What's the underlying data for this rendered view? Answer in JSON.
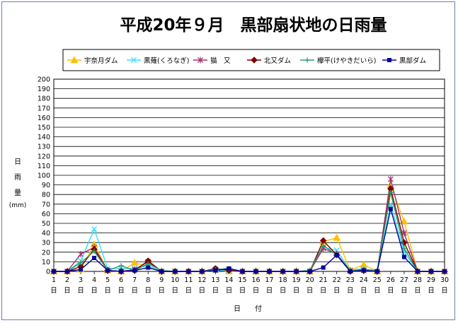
{
  "chart_data": {
    "type": "line",
    "title": "平成20年９月　黒部扇状地の日雨量",
    "ylabel": [
      "日",
      "雨",
      "量",
      "(mm)"
    ],
    "xlabel": "日　　付",
    "day_suffix": "日",
    "ylim": [
      0,
      200
    ],
    "ytick_step": 10,
    "grid": true,
    "legend_position": "top",
    "x": [
      1,
      2,
      3,
      4,
      5,
      6,
      7,
      8,
      9,
      10,
      11,
      12,
      13,
      14,
      15,
      16,
      17,
      18,
      19,
      20,
      21,
      22,
      23,
      24,
      25,
      26,
      27,
      28,
      29,
      30
    ],
    "series": [
      {
        "name": "宇奈月ダム",
        "color": "#ffc000",
        "marker": "triangle",
        "values": [
          0,
          0,
          2,
          28,
          1,
          0,
          9,
          5,
          0,
          0,
          0,
          0,
          2,
          0,
          0,
          0,
          0,
          0,
          0,
          0,
          31,
          35,
          1,
          7,
          0,
          90,
          52,
          0,
          0,
          0
        ]
      },
      {
        "name": "黒薙(くろなぎ)",
        "color": "#33e0ff",
        "marker": "x",
        "values": [
          0,
          0,
          11,
          44,
          3,
          3,
          3,
          6,
          0,
          0,
          0,
          0,
          1,
          1,
          0,
          0,
          0,
          0,
          0,
          0,
          25,
          22,
          1,
          3,
          0,
          70,
          20,
          0,
          0,
          0
        ]
      },
      {
        "name": "猫　又",
        "color": "#a0306a",
        "marker": "star",
        "values": [
          0,
          0,
          18,
          25,
          1,
          0,
          2,
          10,
          0,
          0,
          0,
          0,
          2,
          2,
          0,
          0,
          0,
          0,
          0,
          0,
          24,
          18,
          1,
          1,
          0,
          96,
          40,
          0,
          0,
          0
        ]
      },
      {
        "name": "北又ダム",
        "color": "#7a0000",
        "marker": "diamond",
        "values": [
          0,
          0,
          5,
          23,
          1,
          0,
          1,
          11,
          0,
          0,
          0,
          0,
          3,
          1,
          0,
          0,
          0,
          0,
          0,
          0,
          32,
          17,
          0,
          1,
          0,
          86,
          30,
          0,
          0,
          0
        ]
      },
      {
        "name": "欅平(けやきだいら)",
        "color": "#2f9a6e",
        "marker": "plus",
        "values": [
          0,
          0,
          9,
          21,
          1,
          6,
          1,
          8,
          1,
          0,
          0,
          0,
          2,
          3,
          0,
          0,
          0,
          0,
          0,
          1,
          27,
          17,
          1,
          2,
          1,
          82,
          24,
          0,
          0,
          0
        ]
      },
      {
        "name": "黒部ダム",
        "color": "#000099",
        "marker": "square",
        "values": [
          0,
          0,
          2,
          14,
          1,
          0,
          1,
          4,
          0,
          0,
          0,
          0,
          1,
          3,
          0,
          0,
          0,
          0,
          0,
          0,
          4,
          17,
          0,
          1,
          0,
          65,
          15,
          0,
          0,
          0
        ]
      }
    ]
  }
}
